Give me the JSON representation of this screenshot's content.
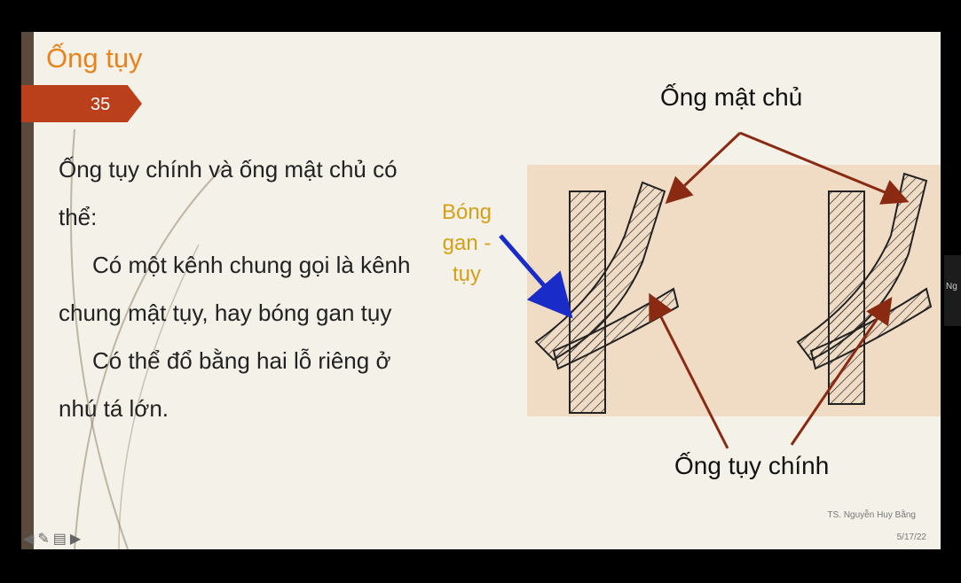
{
  "slide": {
    "title": "Ống tụy",
    "number": "35",
    "body": {
      "line1": "Ống tụy chính và ống mật chủ có thể:",
      "line2": "Có một kênh chung gọi là kênh chung mật tụy, hay bóng gan tụy",
      "line3": "Có thể đổ bằng hai lỗ riêng ở nhú tá lớn."
    },
    "diagram": {
      "label_common_bile": "Ống mật chủ",
      "label_ampulla": "Bóng gan - tụy",
      "label_pancreatic": "Ống tụy chính"
    },
    "footer": {
      "author": "TS. Nguyễn Huy Bằng",
      "date": "5/17/22"
    }
  },
  "side_tab": {
    "label": "Ng"
  },
  "nav": {
    "icons": [
      "arrow-left-icon",
      "pen-icon",
      "menu-icon",
      "arrow-right-icon"
    ]
  },
  "colors": {
    "title": "#e8821a",
    "tag": "#b9401a",
    "ampulla_label": "#d4a017",
    "ampulla_arrow": "#1a2cc8",
    "pointer": "#8a2a12"
  }
}
